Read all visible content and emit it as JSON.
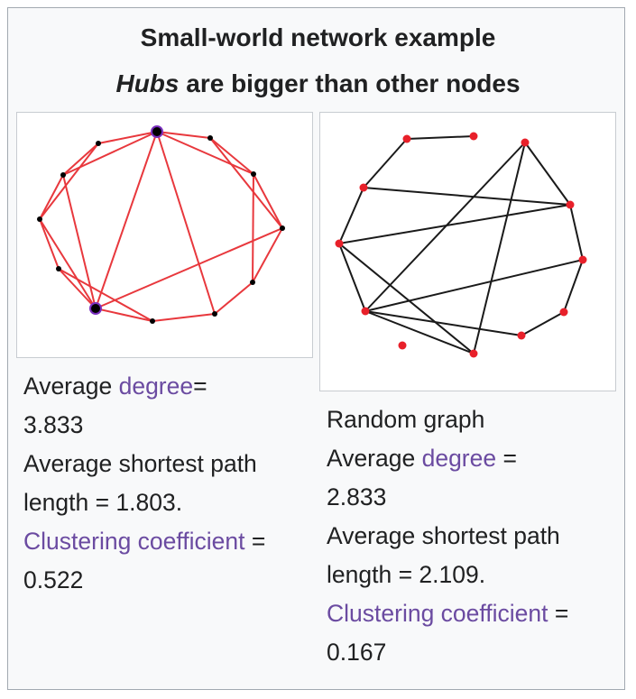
{
  "title_line1": "Small-world network example",
  "title_line2_em": "Hubs",
  "title_line2_rest": " are bigger than other nodes",
  "left_caption": {
    "avg_degree_prefix": "Average ",
    "avg_degree_link": "degree",
    "avg_degree_suffix": "=",
    "avg_degree_value": "3.833",
    "shortest_path_line1": "Average shortest path",
    "shortest_path_line2": "length = 1.803.",
    "clustering_link": "Clustering coefficient",
    "clustering_suffix": " =",
    "clustering_value": "0.522"
  },
  "right_caption": {
    "graph_label": "Random graph",
    "avg_degree_prefix": "Average ",
    "avg_degree_link": "degree",
    "avg_degree_suffix": " =",
    "avg_degree_value": "2.833",
    "shortest_path_line1": "Average shortest path",
    "shortest_path_line2": "length = 2.109.",
    "clustering_link": "Clustering coefficient",
    "clustering_suffix": " =",
    "clustering_value": "0.167"
  },
  "colors": {
    "link": "#6b4ba1",
    "small_world_edge": "#e8383d",
    "small_world_node": "#000000",
    "hub_ring": "#7a2fbf",
    "random_edge": "#1a1a1a",
    "random_node": "#e8202a"
  }
}
